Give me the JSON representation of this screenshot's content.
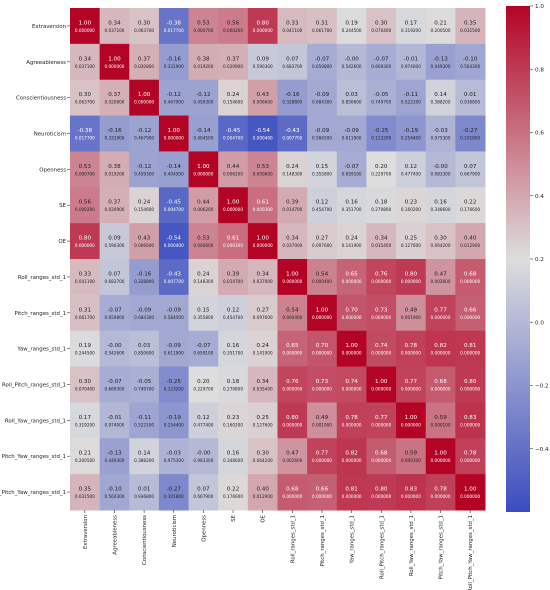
{
  "chart_data": {
    "type": "heatmap",
    "title": "",
    "xlabel": "",
    "ylabel": "",
    "labels": [
      "Extraversion",
      "Agreeableness",
      "Conscientiousness",
      "Neuroticism",
      "Openness",
      "SE",
      "OE",
      "Roll_ranges_std_1",
      "Pitch_ranges_std_1",
      "Yaw_ranges_std_1",
      "Roll_Pitch_ranges_std_1",
      "Roll_Yaw_ranges_std_1",
      "Pitch_Yaw_ranges_std_1",
      "Roll_Pitch_Yaw_ranges_std_1"
    ],
    "values": [
      [
        1.0,
        0.34,
        0.3,
        -0.38,
        0.53,
        0.56,
        0.8,
        0.33,
        0.31,
        0.19,
        0.3,
        0.17,
        0.21,
        0.35
      ],
      [
        0.34,
        1.0,
        0.37,
        -0.16,
        0.38,
        0.37,
        0.09,
        0.07,
        -0.07,
        -0.0,
        -0.07,
        -0.01,
        -0.13,
        -0.1
      ],
      [
        0.3,
        0.37,
        1.0,
        -0.12,
        -0.12,
        0.24,
        0.43,
        -0.16,
        -0.09,
        0.03,
        -0.05,
        -0.11,
        0.14,
        0.01
      ],
      [
        -0.38,
        -0.16,
        -0.12,
        1.0,
        -0.14,
        -0.45,
        -0.54,
        -0.43,
        -0.09,
        -0.09,
        -0.25,
        -0.19,
        -0.03,
        -0.27
      ],
      [
        0.53,
        0.38,
        -0.12,
        -0.14,
        1.0,
        0.44,
        0.53,
        0.24,
        0.15,
        -0.07,
        0.2,
        0.12,
        -0.0,
        0.07
      ],
      [
        0.56,
        0.37,
        0.24,
        -0.45,
        0.44,
        1.0,
        0.61,
        0.39,
        0.12,
        0.16,
        0.18,
        0.23,
        0.16,
        0.22
      ],
      [
        0.8,
        0.09,
        0.43,
        -0.54,
        0.53,
        0.61,
        1.0,
        0.34,
        0.27,
        0.24,
        0.34,
        0.25,
        0.3,
        0.4
      ],
      [
        0.33,
        0.07,
        -0.16,
        -0.43,
        0.24,
        0.39,
        0.34,
        1.0,
        0.54,
        0.65,
        0.76,
        0.8,
        0.47,
        0.68
      ],
      [
        0.31,
        -0.07,
        -0.09,
        -0.09,
        0.15,
        0.12,
        0.27,
        0.54,
        1.0,
        0.7,
        0.73,
        0.49,
        0.77,
        0.66
      ],
      [
        0.19,
        -0.0,
        0.03,
        -0.09,
        -0.07,
        0.16,
        0.24,
        0.65,
        0.7,
        1.0,
        0.74,
        0.78,
        0.82,
        0.81
      ],
      [
        0.3,
        -0.07,
        -0.05,
        -0.25,
        0.2,
        0.18,
        0.34,
        0.76,
        0.73,
        0.74,
        1.0,
        0.77,
        0.68,
        0.8
      ],
      [
        0.17,
        -0.01,
        -0.11,
        -0.19,
        0.12,
        0.23,
        0.25,
        0.8,
        0.49,
        0.78,
        0.77,
        1.0,
        0.59,
        0.83
      ],
      [
        0.21,
        -0.13,
        0.14,
        -0.03,
        -0.0,
        0.16,
        0.3,
        0.47,
        0.77,
        0.82,
        0.68,
        0.59,
        1.0,
        0.78
      ],
      [
        0.35,
        -0.1,
        0.01,
        -0.27,
        0.07,
        0.22,
        0.4,
        0.68,
        0.66,
        0.81,
        0.8,
        0.83,
        0.78,
        1.0
      ]
    ],
    "pvalues": [
      [
        "0.000000",
        "0.037100",
        "0.063700",
        "0.017700",
        "0.000700",
        "0.000200",
        "0.000000",
        "0.041100",
        "0.061700",
        "0.244500",
        "0.070400",
        "0.319200",
        "0.200500",
        "0.031500"
      ],
      [
        "0.037100",
        "0.000000",
        "0.020800",
        "0.331900",
        "0.019200",
        "0.020900",
        "0.590300",
        "0.683700",
        "0.659800",
        "0.542600",
        "0.669300",
        "0.974000",
        "0.449300",
        "0.564300"
      ],
      [
        "0.063700",
        "0.020800",
        "0.000000",
        "0.467900",
        "0.459300",
        "0.154600",
        "0.006600",
        "0.328800",
        "0.684300",
        "0.850600",
        "0.749700",
        "0.522100",
        "0.388200",
        "0.936800"
      ],
      [
        "0.017700",
        "0.331900",
        "0.467900",
        "0.000000",
        "0.404500",
        "0.004700",
        "0.000400",
        "0.007700",
        "0.584500",
        "0.611900",
        "0.123200",
        "0.254400",
        "0.975300",
        "0.101800"
      ],
      [
        "0.000700",
        "0.019200",
        "0.459300",
        "0.404500",
        "0.000000",
        "0.006200",
        "0.000600",
        "0.148300",
        "0.355800",
        "0.659100",
        "0.229700",
        "0.477400",
        "0.983300",
        "0.667900"
      ],
      [
        "0.000200",
        "0.020900",
        "0.154600",
        "0.004700",
        "0.006200",
        "0.000000",
        "0.000300",
        "0.014700",
        "0.454700",
        "0.351700",
        "0.270800",
        "0.160200",
        "0.348600",
        "0.176600"
      ],
      [
        "0.000000",
        "0.590300",
        "0.006600",
        "0.000400",
        "0.000600",
        "0.000300",
        "0.000000",
        "0.037000",
        "0.097600",
        "0.141900",
        "0.035400",
        "0.127600",
        "0.064200",
        "0.012900"
      ],
      [
        "0.041100",
        "0.683700",
        "0.328800",
        "0.007700",
        "0.148300",
        "0.014700",
        "0.037000",
        "0.000000",
        "0.000400",
        "0.000000",
        "0.000000",
        "0.000000",
        "0.002600",
        "0.000000"
      ],
      [
        "0.061700",
        "0.659800",
        "0.684300",
        "0.584500",
        "0.355800",
        "0.454700",
        "0.097600",
        "0.000400",
        "0.000000",
        "0.000000",
        "0.000000",
        "0.001900",
        "0.000000",
        "0.000000"
      ],
      [
        "0.244500",
        "0.542600",
        "0.850600",
        "0.611900",
        "0.659100",
        "0.351700",
        "0.141900",
        "0.000000",
        "0.000000",
        "0.000000",
        "0.000000",
        "0.000000",
        "0.000000",
        "0.000000"
      ],
      [
        "0.070400",
        "0.669300",
        "0.749700",
        "0.123200",
        "0.229700",
        "0.270800",
        "0.035400",
        "0.000000",
        "0.000000",
        "0.000000",
        "0.000000",
        "0.000000",
        "0.000000",
        "0.000000"
      ],
      [
        "0.319200",
        "0.974000",
        "0.522100",
        "0.254400",
        "0.477400",
        "0.160200",
        "0.127600",
        "0.000000",
        "0.001900",
        "0.000000",
        "0.000000",
        "0.000000",
        "0.000100",
        "0.000000"
      ],
      [
        "0.200500",
        "0.449300",
        "0.388200",
        "0.975300",
        "0.983300",
        "0.348600",
        "0.064200",
        "0.002600",
        "0.000000",
        "0.000000",
        "0.000000",
        "0.000100",
        "0.000000",
        "0.000000"
      ],
      [
        "0.031500",
        "0.564300",
        "0.936800",
        "0.101800",
        "0.667900",
        "0.176600",
        "0.012900",
        "0.000000",
        "0.000000",
        "0.000000",
        "0.000000",
        "0.000000",
        "0.000000",
        "0.000000"
      ]
    ],
    "colorbar": {
      "range": [
        -0.6,
        1.0
      ],
      "ticks": [
        -0.4,
        -0.2,
        0.0,
        0.2,
        0.4,
        0.6,
        0.8,
        1.0
      ],
      "tick_labels": [
        "−0.4",
        "−0.2",
        "0.0",
        "0.2",
        "0.4",
        "0.6",
        "0.8",
        "1.0"
      ],
      "colormap": "coolwarm",
      "colors": [
        "#3b4cc0",
        "#dddddd",
        "#b40426"
      ]
    }
  }
}
